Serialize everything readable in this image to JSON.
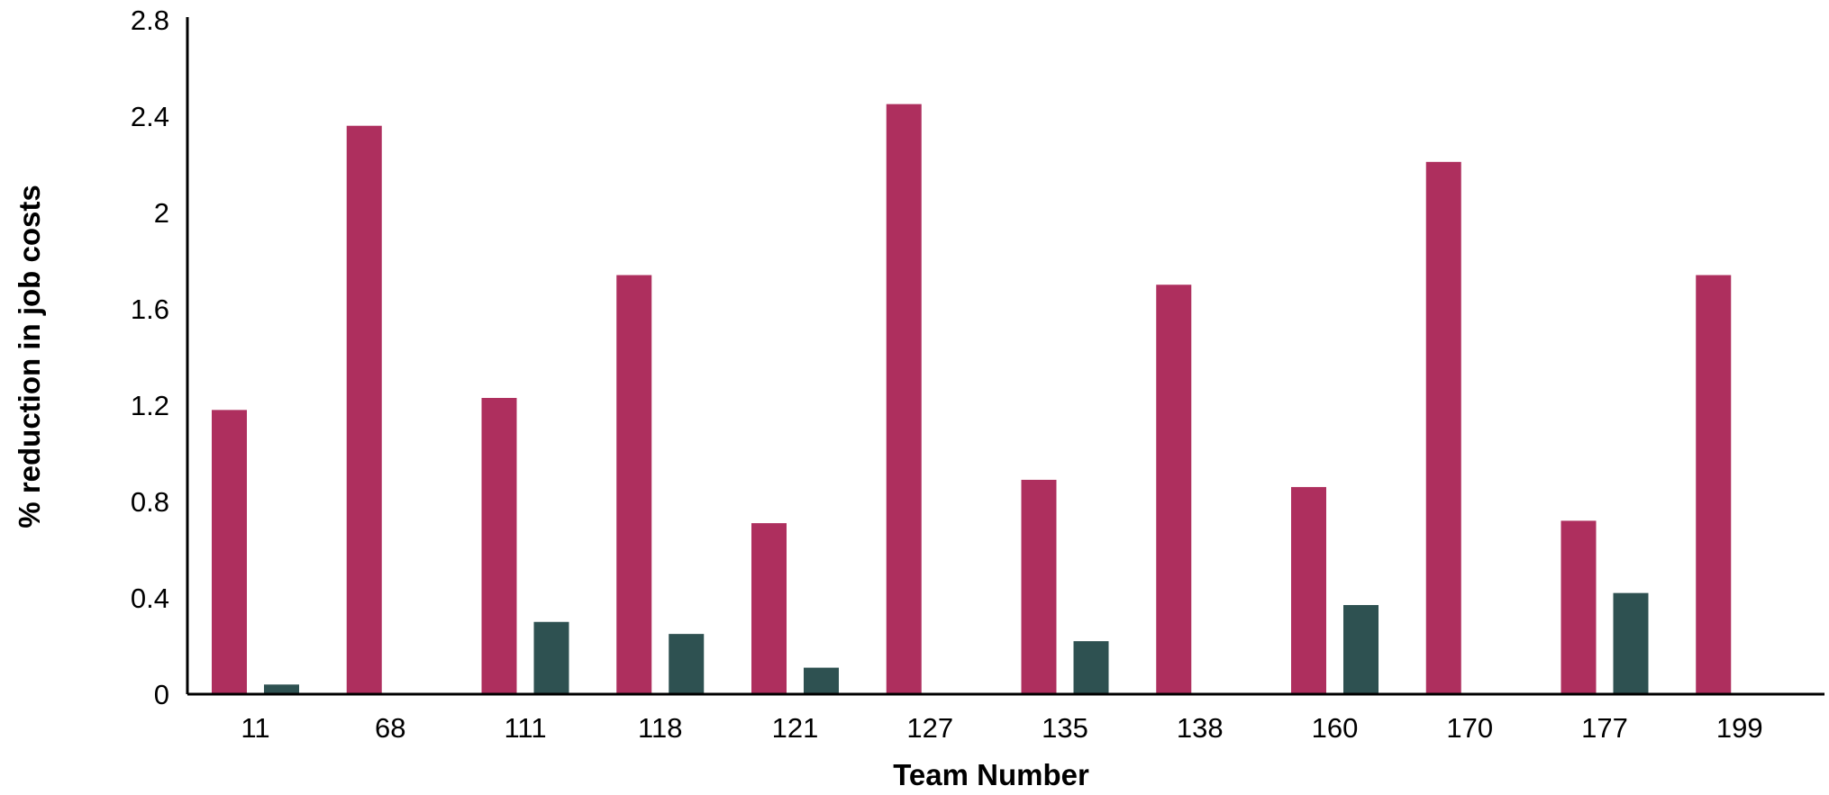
{
  "chart_data": {
    "type": "bar",
    "title": "",
    "xlabel": "Team Number",
    "ylabel": "% reduction in job costs",
    "categories": [
      "11",
      "68",
      "111",
      "118",
      "121",
      "127",
      "135",
      "138",
      "160",
      "170",
      "177",
      "199"
    ],
    "series": [
      {
        "color": "#AE2F5E",
        "values": [
          1.18,
          2.36,
          1.23,
          1.74,
          0.71,
          2.45,
          0.89,
          1.7,
          0.86,
          2.21,
          0.72,
          1.74
        ]
      },
      {
        "color": "#2E5151",
        "values": [
          0.04,
          0,
          0.3,
          0.25,
          0.11,
          0,
          0.22,
          0,
          0.37,
          0,
          0.42,
          0
        ]
      }
    ],
    "ylim": [
      0,
      2.8
    ],
    "yticks": [
      "0",
      "0.4",
      "0.8",
      "1.2",
      "1.6",
      "2",
      "2.4",
      "2.8"
    ],
    "grid": false,
    "legend": "none"
  }
}
